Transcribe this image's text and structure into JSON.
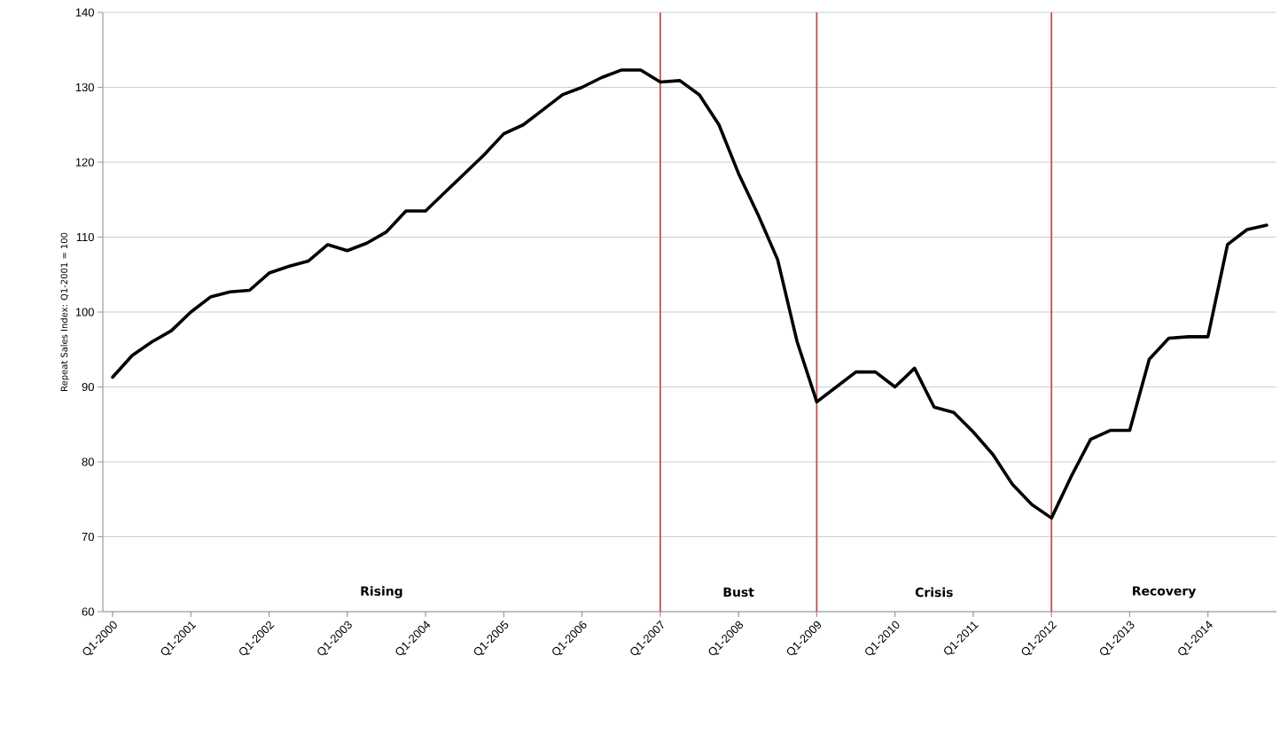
{
  "chart_data": {
    "type": "line",
    "ylabel": "Repeat Sales Index: Q1-2001 = 100",
    "categories": [
      "Q1-2000",
      null,
      null,
      null,
      "Q1-2001",
      null,
      null,
      null,
      "Q1-2002",
      null,
      null,
      null,
      "Q1-2003",
      null,
      null,
      null,
      "Q1-2004",
      null,
      null,
      null,
      "Q1-2005",
      null,
      null,
      null,
      "Q1-2006",
      null,
      null,
      null,
      "Q1-2007",
      null,
      null,
      null,
      "Q1-2008",
      null,
      null,
      null,
      "Q1-2009",
      null,
      null,
      null,
      "Q1-2010",
      null,
      null,
      null,
      "Q1-2011",
      null,
      null,
      null,
      "Q1-2012",
      null,
      null,
      null,
      "Q1-2013",
      null,
      null,
      null,
      "Q1-2014",
      null,
      null,
      null
    ],
    "series": [
      {
        "color": "#000000",
        "values": [
          91.3,
          94.2,
          96.0,
          97.5,
          100.0,
          102.0,
          102.7,
          102.9,
          105.2,
          106.1,
          106.8,
          109.0,
          108.2,
          109.2,
          110.7,
          113.5,
          113.5,
          116.0,
          118.5,
          121.0,
          123.8,
          125.0,
          127.0,
          129.0,
          130.0,
          131.3,
          132.3,
          132.3,
          130.7,
          130.9,
          129.0,
          125.0,
          118.5,
          113.0,
          107.0,
          96.0,
          88.0,
          90.0,
          92.0,
          92.0,
          90.0,
          92.5,
          87.3,
          86.6,
          84.0,
          81.0,
          77.0,
          74.3,
          72.5,
          78.0,
          83.0,
          84.2,
          84.2,
          93.7,
          96.5,
          96.7,
          96.7,
          109.0,
          111.0,
          111.6
        ]
      }
    ],
    "ylim": [
      60,
      140
    ],
    "yticks": [
      60,
      70,
      80,
      90,
      100,
      110,
      120,
      130,
      140
    ],
    "grid": "y",
    "line_style": "solid",
    "ref_lines": [
      {
        "axis": "x",
        "value": "Q1-2007",
        "color": "#c0504d"
      },
      {
        "axis": "x",
        "value": "Q1-2009",
        "color": "#c0504d"
      },
      {
        "axis": "x",
        "value": "Q1-2012",
        "color": "#c0504d"
      }
    ],
    "annotations": [
      "Rising",
      "Bust",
      "Crisis",
      "Recovery"
    ]
  }
}
